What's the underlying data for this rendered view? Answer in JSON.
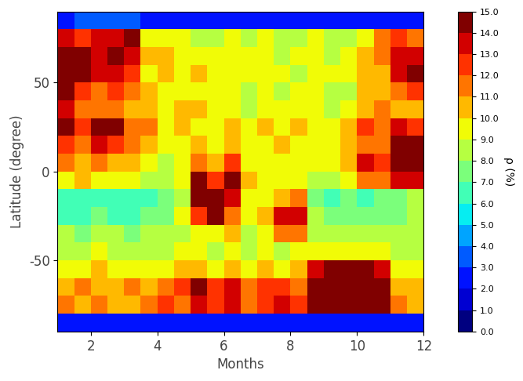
{
  "chart_data": {
    "type": "heatmap",
    "x_label": "Months",
    "y_label": "Latitude (degree)",
    "xlim": [
      1,
      12
    ],
    "xticks": [
      2,
      4,
      6,
      8,
      10,
      12
    ],
    "ylim": [
      -90,
      90
    ],
    "yticks": [
      -50,
      0,
      50
    ],
    "color": "jet",
    "x_edges": [
      1,
      1.5,
      2,
      2.5,
      3,
      3.5,
      4,
      4.5,
      5,
      5.5,
      6,
      6.5,
      7,
      7.5,
      8,
      8.5,
      9,
      9.5,
      10,
      10.5,
      11,
      11.5,
      12
    ],
    "y_edges": [
      -90,
      -80,
      -70,
      -60,
      -50,
      -40,
      -30,
      -20,
      -10,
      0,
      10,
      20,
      30,
      40,
      50,
      60,
      70,
      80,
      90
    ],
    "cells": [
      [
        2,
        2,
        2,
        2,
        2,
        2,
        2,
        2,
        2,
        2,
        2,
        2,
        2,
        2,
        2,
        2,
        2,
        2,
        2,
        2,
        2,
        2
      ],
      [
        11,
        10,
        11,
        10,
        10,
        11,
        12,
        11,
        13,
        12,
        13,
        11,
        12,
        13,
        12,
        14,
        15,
        15,
        15,
        15,
        11,
        10
      ],
      [
        10,
        11,
        10,
        10,
        11,
        10,
        11,
        12,
        14,
        12,
        13,
        11,
        12,
        12,
        11,
        14,
        15,
        15,
        15,
        14,
        10,
        10
      ],
      [
        9,
        9,
        10,
        9,
        9,
        9,
        9,
        10,
        10,
        9,
        10,
        9,
        10,
        9,
        10,
        13,
        14,
        14,
        14,
        13,
        9,
        9
      ],
      [
        8,
        8,
        9,
        8,
        8,
        8,
        8,
        9,
        9,
        8,
        9,
        8,
        9,
        8,
        9,
        9,
        9,
        9,
        9,
        9,
        8,
        8
      ],
      [
        8,
        7,
        8,
        8,
        7,
        8,
        8,
        8,
        9,
        9,
        10,
        8,
        9,
        11,
        11,
        8,
        8,
        8,
        8,
        8,
        8,
        8
      ],
      [
        6,
        6,
        7,
        6,
        6,
        7,
        7,
        9,
        12,
        14,
        11,
        9,
        10,
        13,
        13,
        8,
        7,
        7,
        7,
        7,
        7,
        8
      ],
      [
        6,
        6,
        6,
        6,
        6,
        6,
        7,
        8,
        14,
        14,
        13,
        9,
        9,
        10,
        11,
        7,
        6,
        7,
        6,
        7,
        7,
        8
      ],
      [
        9,
        10,
        9,
        9,
        9,
        8,
        8,
        9,
        14,
        12,
        14,
        10,
        9,
        9,
        9,
        8,
        8,
        9,
        11,
        11,
        13,
        13
      ],
      [
        11,
        10,
        11,
        10,
        10,
        9,
        8,
        9,
        11,
        10,
        12,
        9,
        9,
        9,
        9,
        9,
        9,
        10,
        13,
        12,
        14,
        14
      ],
      [
        12,
        11,
        13,
        12,
        11,
        10,
        9,
        9,
        10,
        9,
        10,
        9,
        9,
        10,
        9,
        9,
        9,
        10,
        11,
        11,
        14,
        14
      ],
      [
        14,
        12,
        14,
        14,
        11,
        11,
        9,
        10,
        9,
        9,
        10,
        9,
        10,
        9,
        10,
        9,
        9,
        10,
        12,
        11,
        13,
        12
      ],
      [
        13,
        11,
        11,
        11,
        10,
        10,
        9,
        10,
        10,
        9,
        9,
        8,
        9,
        9,
        9,
        9,
        8,
        9,
        10,
        11,
        10,
        10
      ],
      [
        14,
        12,
        11,
        12,
        11,
        10,
        9,
        9,
        9,
        9,
        9,
        8,
        9,
        8,
        9,
        9,
        8,
        8,
        10,
        10,
        11,
        12
      ],
      [
        15,
        14,
        13,
        13,
        12,
        9,
        10,
        9,
        10,
        9,
        9,
        9,
        9,
        9,
        8,
        9,
        9,
        9,
        10,
        10,
        13,
        14
      ],
      [
        15,
        14,
        13,
        14,
        13,
        10,
        10,
        9,
        9,
        9,
        9,
        9,
        9,
        8,
        9,
        9,
        8,
        9,
        10,
        11,
        13,
        13
      ],
      [
        13,
        12,
        13,
        13,
        14,
        9,
        9,
        9,
        8,
        8,
        9,
        8,
        9,
        8,
        8,
        9,
        8,
        8,
        9,
        11,
        12,
        11
      ],
      [
        2,
        3,
        3,
        3,
        3,
        2,
        2,
        2,
        2,
        2,
        2,
        2,
        2,
        2,
        2,
        2,
        2,
        2,
        2,
        2,
        2,
        2
      ]
    ],
    "colorbar": {
      "label": "ρ (%)",
      "range": [
        0,
        15
      ],
      "ticks": [
        {
          "value": 0,
          "label": "0.0"
        },
        {
          "value": 1,
          "label": "1.0"
        },
        {
          "value": 2,
          "label": "2.0"
        },
        {
          "value": 3,
          "label": "3.0"
        },
        {
          "value": 4,
          "label": "4.0"
        },
        {
          "value": 5,
          "label": "5.0"
        },
        {
          "value": 6,
          "label": "6.0"
        },
        {
          "value": 7,
          "label": "7.0"
        },
        {
          "value": 8,
          "label": "8.0"
        },
        {
          "value": 9,
          "label": "9.0"
        },
        {
          "value": 10,
          "label": "10.0"
        },
        {
          "value": 11,
          "label": "11.0"
        },
        {
          "value": 12,
          "label": "12.0"
        },
        {
          "value": 13,
          "label": "13.0"
        },
        {
          "value": 14,
          "label": "14.0"
        },
        {
          "value": 15,
          "label": "15.0"
        }
      ]
    }
  }
}
